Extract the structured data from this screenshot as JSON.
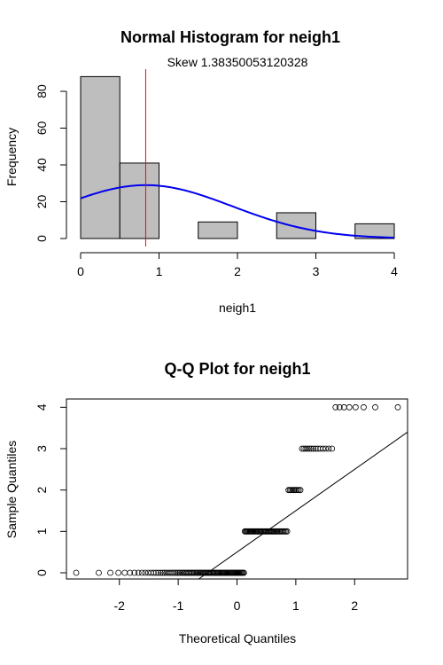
{
  "chart_data": [
    {
      "type": "bar",
      "title": "Normal Histogram for neigh1",
      "subtitle": "Skew 1.38350053120328",
      "xlabel": "neigh1",
      "ylabel": "Frequency",
      "xlim": [
        0,
        4
      ],
      "ylim": [
        0,
        90
      ],
      "x_ticks": [
        "0",
        "1",
        "2",
        "3",
        "4"
      ],
      "y_ticks": [
        "0",
        "20",
        "40",
        "60",
        "80"
      ],
      "bins": [
        {
          "start": 0.0,
          "end": 0.5,
          "count": 88
        },
        {
          "start": 0.5,
          "end": 1.0,
          "count": 41
        },
        {
          "start": 1.0,
          "end": 1.5,
          "count": 0
        },
        {
          "start": 1.5,
          "end": 2.0,
          "count": 9
        },
        {
          "start": 2.0,
          "end": 2.5,
          "count": 0
        },
        {
          "start": 2.5,
          "end": 3.0,
          "count": 14
        },
        {
          "start": 3.0,
          "end": 3.5,
          "count": 0
        },
        {
          "start": 3.5,
          "end": 4.0,
          "count": 8
        }
      ],
      "normal_curve": {
        "mean": 0.83,
        "sd": 1.1,
        "n": 160,
        "bin_width": 0.5,
        "color": "#0000ee"
      },
      "mean_line": {
        "x": 0.83,
        "color": "#ff0000"
      },
      "bar_color": "#bebebe",
      "grid": false
    },
    {
      "type": "scatter",
      "title": "Q-Q Plot for neigh1",
      "xlabel": "Theoretical Quantiles",
      "ylabel": "Sample Quantiles",
      "xlim": [
        -2.9,
        2.9
      ],
      "ylim": [
        -0.15,
        4.2
      ],
      "x_ticks": [
        "-2",
        "-1",
        "0",
        "1",
        "2"
      ],
      "y_ticks": [
        "0",
        "1",
        "2",
        "3",
        "4"
      ],
      "groups": [
        {
          "y": 0,
          "x_from": -2.74,
          "x_to": 0.12,
          "n": 88
        },
        {
          "y": 1,
          "x_from": 0.13,
          "x_to": 0.85,
          "n": 41
        },
        {
          "y": 2,
          "x_from": 0.89,
          "x_to": 1.06,
          "n": 9
        },
        {
          "y": 3,
          "x_from": 1.1,
          "x_to": 1.52,
          "n": 14
        },
        {
          "y": 4,
          "x_from": 1.64,
          "x_to": 2.74,
          "n": 8
        }
      ],
      "qq_line": {
        "slope": 1.0,
        "intercept": 0.5
      },
      "grid": false
    }
  ]
}
